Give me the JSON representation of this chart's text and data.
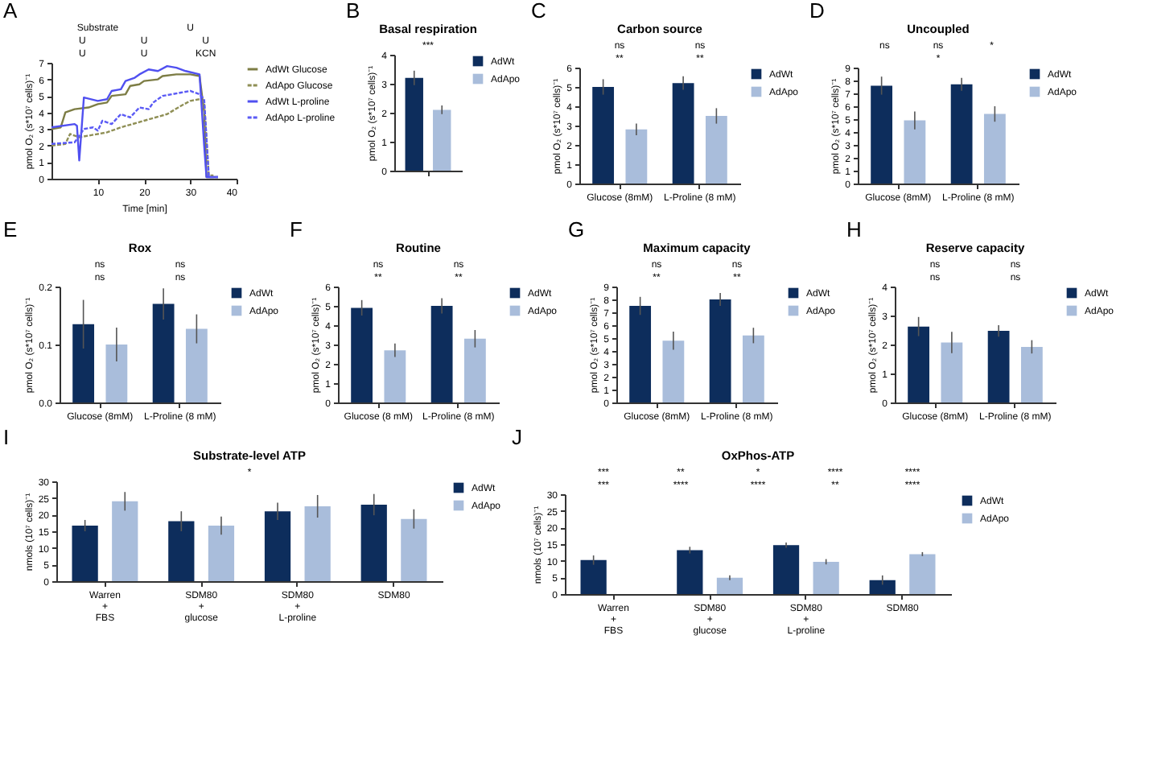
{
  "chart_data": [
    {
      "type": "line",
      "xlabel": "Time [min]",
      "ylabel": "pmol O₂ (s*10⁷ cells)⁻¹",
      "xlim": [
        0,
        40
      ],
      "xticks": [
        10,
        20,
        30,
        40
      ],
      "ylim": [
        0,
        7
      ],
      "yticks": [
        0,
        1,
        2,
        3,
        4,
        5,
        6,
        7
      ],
      "legend": "right",
      "marker": "none",
      "annotations": [
        "A",
        "Substrate",
        "U",
        "U",
        "U",
        "U",
        "U",
        "U",
        "KCN"
      ],
      "series": [
        {
          "name": "AdWt Glucose",
          "color": "#7d7d45",
          "line_style": "solid",
          "x": [
            0,
            2,
            3,
            5,
            8,
            10,
            12,
            13,
            16,
            17,
            19,
            20,
            23,
            24,
            27,
            30,
            32,
            33,
            33.5,
            36
          ],
          "values": [
            3.0,
            3.1,
            4.0,
            4.2,
            4.3,
            4.5,
            4.6,
            5.0,
            5.1,
            5.6,
            5.7,
            5.9,
            6.0,
            6.2,
            6.3,
            6.3,
            6.2,
            4.0,
            0.1,
            0.1
          ]
        },
        {
          "name": "AdApo Glucose",
          "color": "#8f8f55",
          "line_style": "dashed",
          "x": [
            0,
            3,
            4,
            6,
            8,
            12,
            15,
            20,
            25,
            28,
            30,
            32,
            33,
            34,
            35
          ],
          "values": [
            2.0,
            2.1,
            2.7,
            2.5,
            2.6,
            2.8,
            3.1,
            3.5,
            3.9,
            4.4,
            4.7,
            4.8,
            4.6,
            0.2,
            0.2
          ]
        },
        {
          "name": "AdWt L-proline",
          "color": "#5050f0",
          "line_style": "solid",
          "x": [
            0,
            5,
            5.5,
            6,
            6.5,
            7,
            10,
            12,
            13,
            15,
            16,
            18,
            19,
            21,
            23,
            25,
            27,
            29,
            32,
            33,
            33.5,
            36
          ],
          "values": [
            3.1,
            3.3,
            3.2,
            1.1,
            3.0,
            4.9,
            4.7,
            4.8,
            5.3,
            5.4,
            5.9,
            6.1,
            6.3,
            6.6,
            6.5,
            6.8,
            6.7,
            6.5,
            6.3,
            2.0,
            0.1,
            0.1
          ]
        },
        {
          "name": "AdApo L-proline",
          "color": "#5a5af5",
          "line_style": "dashed",
          "x": [
            0,
            5,
            7,
            9,
            10,
            11,
            13,
            15,
            17,
            19,
            21,
            22,
            24,
            26,
            28,
            30,
            32,
            33,
            34,
            36
          ],
          "values": [
            2.1,
            2.2,
            3.0,
            3.1,
            2.9,
            3.5,
            3.3,
            3.9,
            3.7,
            4.3,
            4.2,
            4.6,
            5.0,
            5.1,
            5.2,
            5.3,
            5.1,
            4.8,
            0.1,
            0.1
          ]
        }
      ]
    },
    {
      "type": "bar",
      "title": "Basal respiration",
      "ylabel": "pmol O₂ (s*10⁷ cells)⁻¹",
      "categories": [
        null
      ],
      "ylim": [
        0,
        4
      ],
      "yticks": [
        0,
        1,
        2,
        3,
        4
      ],
      "legend": "right",
      "annotations": [
        "B",
        "***"
      ],
      "series": [
        {
          "name": "AdWt",
          "color": "#0d2d5c",
          "values": [
            3.2
          ],
          "errors": [
            0.25
          ]
        },
        {
          "name": "AdApo",
          "color": "#a9bddb",
          "values": [
            2.1
          ],
          "errors": [
            0.15
          ]
        }
      ]
    },
    {
      "type": "bar",
      "title": "Carbon source",
      "ylabel": "pmol O₂ (s*10⁷ cells)⁻¹",
      "categories": [
        "Glucose (8mM)",
        "L-Proline (8 mM)"
      ],
      "ylim": [
        0,
        6
      ],
      "yticks": [
        0,
        1,
        2,
        3,
        4,
        5,
        6
      ],
      "legend": "right",
      "annotations": [
        "C",
        "ns",
        "ns",
        "**",
        "**"
      ],
      "series": [
        {
          "name": "AdWt",
          "color": "#0d2d5c",
          "values": [
            5.0,
            5.2
          ],
          "errors": [
            0.4,
            0.35
          ]
        },
        {
          "name": "AdApo",
          "color": "#a9bddb",
          "values": [
            2.8,
            3.5
          ],
          "errors": [
            0.3,
            0.4
          ]
        }
      ]
    },
    {
      "type": "bar",
      "title": "Uncoupled",
      "ylabel": "pmol O₂ (s*10⁷ cells)⁻¹",
      "categories": [
        "Glucose (8mM)",
        "L-Proline (8 mM)"
      ],
      "ylim": [
        0,
        9
      ],
      "yticks": [
        0,
        1,
        2,
        3,
        4,
        5,
        6,
        7,
        8,
        9
      ],
      "legend": "right",
      "annotations": [
        "D",
        "ns",
        "ns",
        "*",
        "*"
      ],
      "series": [
        {
          "name": "AdWt",
          "color": "#0d2d5c",
          "values": [
            7.6,
            7.7
          ],
          "errors": [
            0.7,
            0.5
          ]
        },
        {
          "name": "AdApo",
          "color": "#a9bddb",
          "values": [
            4.9,
            5.4
          ],
          "errors": [
            0.7,
            0.6
          ]
        }
      ]
    },
    {
      "type": "bar",
      "title": "Rox",
      "ylabel": "pmol O₂ (s*10⁷ cells)⁻¹",
      "categories": [
        "Glucose (8mM)",
        "L-Proline (8 mM)"
      ],
      "ylim": [
        0,
        0.2
      ],
      "yticks": [
        {
          "value": 0,
          "label": "0.0"
        },
        0.1,
        0.2
      ],
      "legend": "right",
      "annotations": [
        "E",
        "ns",
        "ns",
        "ns",
        "ns"
      ],
      "series": [
        {
          "name": "AdWt",
          "color": "#0d2d5c",
          "values": [
            0.135,
            0.17
          ],
          "errors": [
            0.042,
            0.027
          ]
        },
        {
          "name": "AdApo",
          "color": "#a9bddb",
          "values": [
            0.1,
            0.127
          ],
          "errors": [
            0.029,
            0.025
          ]
        }
      ]
    },
    {
      "type": "bar",
      "title": "Routine",
      "ylabel": "pmol O₂ (s*10⁷ cells)⁻¹",
      "categories": [
        "Glucose (8 mM)",
        "L-Proline (8 mM)"
      ],
      "ylim": [
        0,
        6
      ],
      "yticks": [
        0,
        1,
        2,
        3,
        4,
        5,
        6
      ],
      "legend": "right",
      "annotations": [
        "F",
        "ns",
        "ns",
        "**",
        "**"
      ],
      "series": [
        {
          "name": "AdWt",
          "color": "#0d2d5c",
          "values": [
            4.9,
            5.0
          ],
          "errors": [
            0.4,
            0.4
          ]
        },
        {
          "name": "AdApo",
          "color": "#a9bddb",
          "values": [
            2.7,
            3.3
          ],
          "errors": [
            0.35,
            0.45
          ]
        }
      ]
    },
    {
      "type": "bar",
      "title": "Maximum capacity",
      "ylabel": "pmol O₂ (s*10⁷ cells)⁻¹",
      "categories": [
        "Glucose (8mM)",
        "L-Proline (8 mM)"
      ],
      "ylim": [
        0,
        9
      ],
      "yticks": [
        0,
        1,
        2,
        3,
        4,
        5,
        6,
        7,
        8,
        9
      ],
      "legend": "right",
      "annotations": [
        "G",
        "ns",
        "ns",
        "**",
        "**"
      ],
      "series": [
        {
          "name": "AdWt",
          "color": "#0d2d5c",
          "values": [
            7.5,
            8.0
          ],
          "errors": [
            0.7,
            0.5
          ]
        },
        {
          "name": "AdApo",
          "color": "#a9bddb",
          "values": [
            4.8,
            5.2
          ],
          "errors": [
            0.7,
            0.6
          ]
        }
      ]
    },
    {
      "type": "bar",
      "title": "Reserve capacity",
      "ylabel": "pmol O₂ (s*10⁷ cells)⁻¹",
      "categories": [
        "Glucose (8mM)",
        "L-Proline (8 mM)"
      ],
      "ylim": [
        0,
        4
      ],
      "yticks": [
        0,
        1,
        2,
        3,
        4
      ],
      "legend": "right",
      "annotations": [
        "H",
        "ns",
        "ns",
        "ns",
        "ns"
      ],
      "series": [
        {
          "name": "AdWt",
          "color": "#0d2d5c",
          "values": [
            2.62,
            2.47
          ],
          "errors": [
            0.33,
            0.2
          ]
        },
        {
          "name": "AdApo",
          "color": "#a9bddb",
          "values": [
            2.07,
            1.92
          ],
          "errors": [
            0.37,
            0.23
          ]
        }
      ]
    },
    {
      "type": "bar",
      "title": "Substrate-level ATP",
      "ylabel": "nmols (10⁷ cells)⁻¹",
      "categories": [
        "Warren\n+\nFBS",
        "SDM80\n+\nglucose",
        "SDM80\n+\nL-proline",
        "SDM80"
      ],
      "ylim": [
        0,
        30
      ],
      "yticks": [
        0,
        5,
        10,
        15,
        20,
        25,
        30
      ],
      "legend": "right",
      "annotations": [
        "I",
        "*"
      ],
      "series": [
        {
          "name": "AdWt",
          "color": "#0d2d5c",
          "values": [
            16.7,
            18,
            21,
            23
          ],
          "errors": [
            1.7,
            3,
            2.6,
            3.2
          ]
        },
        {
          "name": "AdApo",
          "color": "#a9bddb",
          "values": [
            24,
            16.7,
            22.5,
            18.7
          ],
          "errors": [
            2.8,
            2.7,
            3.4,
            2.9
          ]
        }
      ]
    },
    {
      "type": "bar",
      "title": "OxPhos-ATP",
      "ylabel": "nmols (10⁷ cells)⁻¹",
      "categories": [
        "Warren\n+\nFBS",
        "SDM80\n+\nglucose",
        "SDM80\n+\nL-proline",
        "SDM80"
      ],
      "ylim": [
        0,
        30
      ],
      "yticks": [
        0,
        5,
        10,
        15,
        20,
        25,
        30
      ],
      "legend": "right",
      "annotations": [
        "J",
        "***",
        "**",
        "*",
        "****",
        "****",
        "***",
        "****",
        "****",
        "**",
        "****"
      ],
      "series": [
        {
          "name": "AdWt",
          "color": "#0d2d5c",
          "values": [
            10.2,
            13.2,
            14.7,
            4.2
          ],
          "errors": [
            1.4,
            1.0,
            0.8,
            1.4
          ]
        },
        {
          "name": "AdApo",
          "color": "#a9bddb",
          "values": [
            null,
            4.9,
            9.7,
            12
          ],
          "errors": [
            null,
            0.7,
            0.8,
            0.6
          ]
        }
      ]
    }
  ]
}
